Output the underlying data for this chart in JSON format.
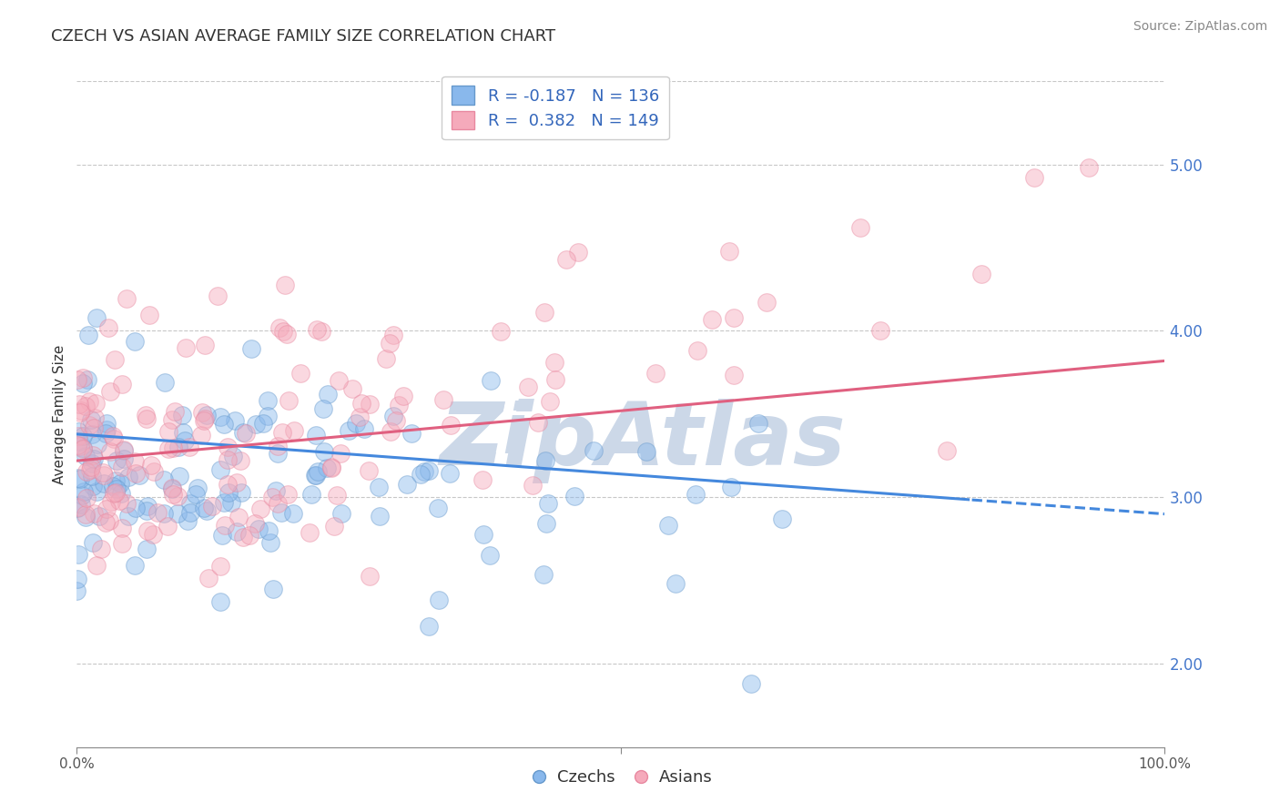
{
  "title": "CZECH VS ASIAN AVERAGE FAMILY SIZE CORRELATION CHART",
  "source": "Source: ZipAtlas.com",
  "xlabel": "",
  "ylabel": "Average Family Size",
  "xlim": [
    0,
    1
  ],
  "ylim": [
    1.5,
    5.5
  ],
  "yticks": [
    2.0,
    3.0,
    4.0,
    5.0
  ],
  "xtick_labels": [
    "0.0%",
    "100.0%"
  ],
  "background_color": "#ffffff",
  "grid_color": "#c8c8c8",
  "czech_color": "#89b8ec",
  "czech_edge": "#6699cc",
  "asian_color": "#f5aabb",
  "asian_edge": "#e888a0",
  "czech_line_color": "#4488dd",
  "asian_line_color": "#e06080",
  "watermark_color": "#ccd8e8",
  "czech_R": -0.187,
  "czech_N": 136,
  "asian_R": 0.382,
  "asian_N": 149,
  "title_fontsize": 13,
  "axis_label_fontsize": 11,
  "tick_fontsize": 11,
  "legend_fontsize": 13,
  "source_fontsize": 10,
  "dot_size": 200,
  "dot_alpha": 0.45,
  "seed": 42
}
